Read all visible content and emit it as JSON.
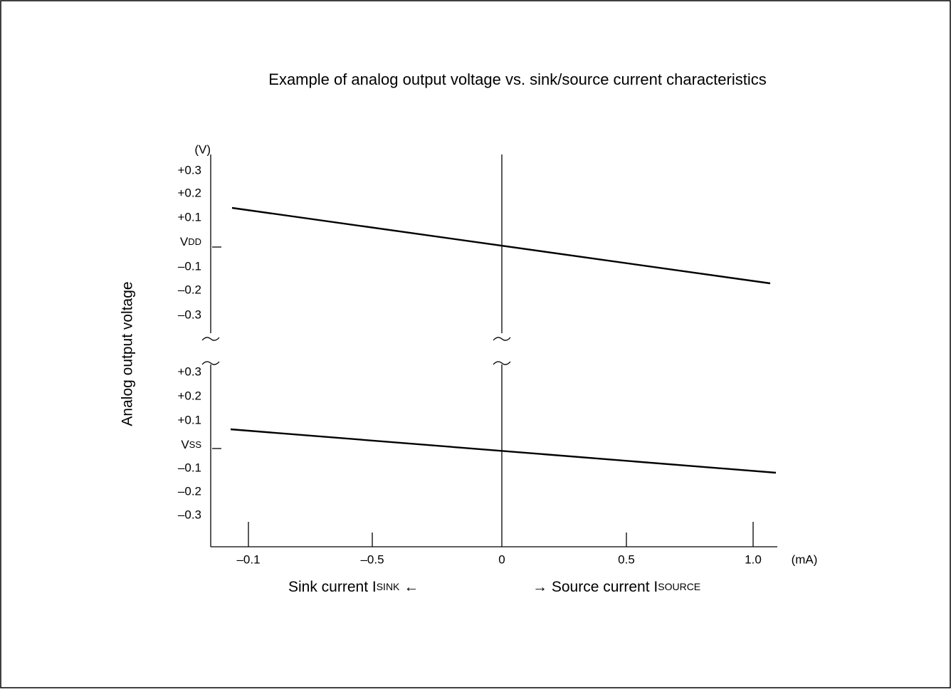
{
  "title": "Example of analog output voltage vs. sink/source current characteristics",
  "y_unit": "(V)",
  "y_title": "Analog output voltage",
  "upper_ticks": [
    "+0.3",
    "+0.2",
    "+0.1",
    "–0.1",
    "–0.2",
    "–0.3"
  ],
  "vdd": {
    "main": "V",
    "sub": "DD"
  },
  "lower_ticks": [
    "+0.3",
    "+0.2",
    "+0.1",
    "–0.1",
    "–0.2",
    "–0.3"
  ],
  "vss": {
    "main": "V",
    "sub": "SS"
  },
  "x_ticks": [
    "–0.1",
    "–0.5",
    "0",
    "0.5",
    "1.0"
  ],
  "x_unit": "(mA)",
  "sink": {
    "text": "Sink current  I",
    "sub": "SINK",
    "arrow": " ←"
  },
  "source": {
    "arrow": "→ ",
    "text": "Source current  I",
    "sub": "SOURCE"
  }
}
